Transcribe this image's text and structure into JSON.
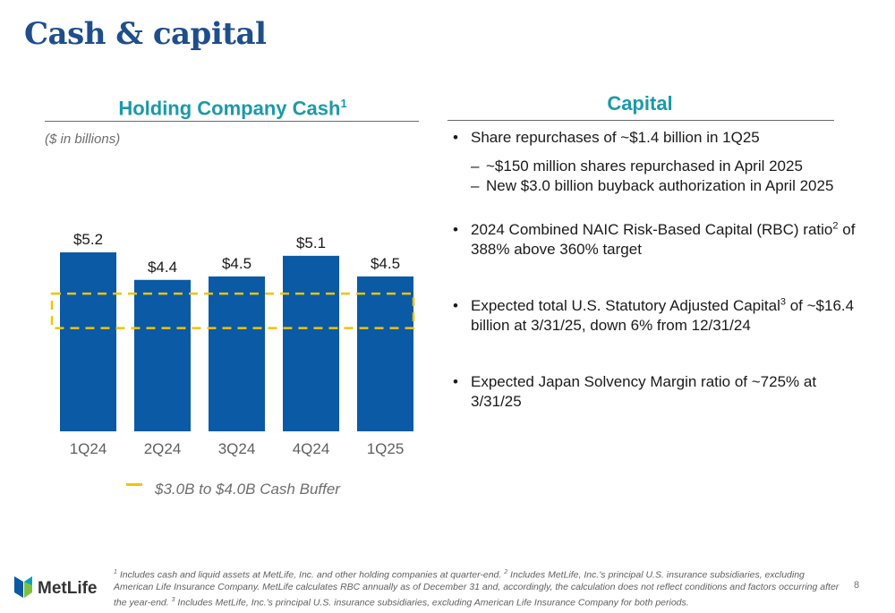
{
  "slide": {
    "title": "Cash & capital",
    "page_number": "8"
  },
  "holding_cash": {
    "heading": "Holding Company Cash",
    "heading_sup": "1",
    "units": "($ in billions)",
    "legend_label": "$3.0B to $4.0B Cash Buffer"
  },
  "chart_data": {
    "type": "bar",
    "categories": [
      "1Q24",
      "2Q24",
      "3Q24",
      "4Q24",
      "1Q25"
    ],
    "values": [
      5.2,
      4.4,
      4.5,
      5.1,
      4.5
    ],
    "data_labels": [
      "$5.2",
      "$4.4",
      "$4.5",
      "$5.1",
      "$4.5"
    ],
    "ylim": [
      0,
      5.2
    ],
    "buffer_band": {
      "low": 3.0,
      "high": 4.0,
      "label": "$3.0B to $4.0B Cash Buffer"
    },
    "legend_position": "bottom",
    "grid": false,
    "colors": {
      "bar": "#0a5aa5",
      "buffer": "#f2c300",
      "axis_text": "#5f5f5f"
    }
  },
  "capital": {
    "heading": "Capital",
    "bullets": {
      "b1": "Share repurchases of ~$1.4 billion in 1Q25",
      "b1_sub1": "~$150 million shares repurchased in April 2025",
      "b1_sub2": "New $3.0 billion buyback authorization in April 2025",
      "b2_pre": "2024 Combined NAIC Risk-Based Capital (RBC) ratio",
      "b2_sup": "2",
      "b2_post": " of 388% above 360% target",
      "b3_pre": "Expected total U.S. Statutory Adjusted Capital",
      "b3_sup": "3",
      "b3_post": " of ~$16.4 billion at 3/31/25, down 6% from 12/31/24",
      "b4": "Expected Japan Solvency Margin ratio of ~725% at 3/31/25"
    }
  },
  "footer": {
    "logo_text": "MetLife",
    "fn1_sup": "1",
    "fn1": " Includes cash and liquid assets at MetLife, Inc. and other holding companies at quarter-end. ",
    "fn2_sup": "2",
    "fn2": " Includes MetLife, Inc.'s principal U.S. insurance subsidiaries, excluding American Life Insurance Company. MetLife calculates RBC annually as of December 31 and, accordingly, the calculation does not reflect conditions and factors occurring after the year-end. ",
    "fn3_sup": "3",
    "fn3": " Includes MetLife, Inc.'s principal U.S. insurance subsidiaries, excluding American Life Insurance Company for both periods."
  }
}
